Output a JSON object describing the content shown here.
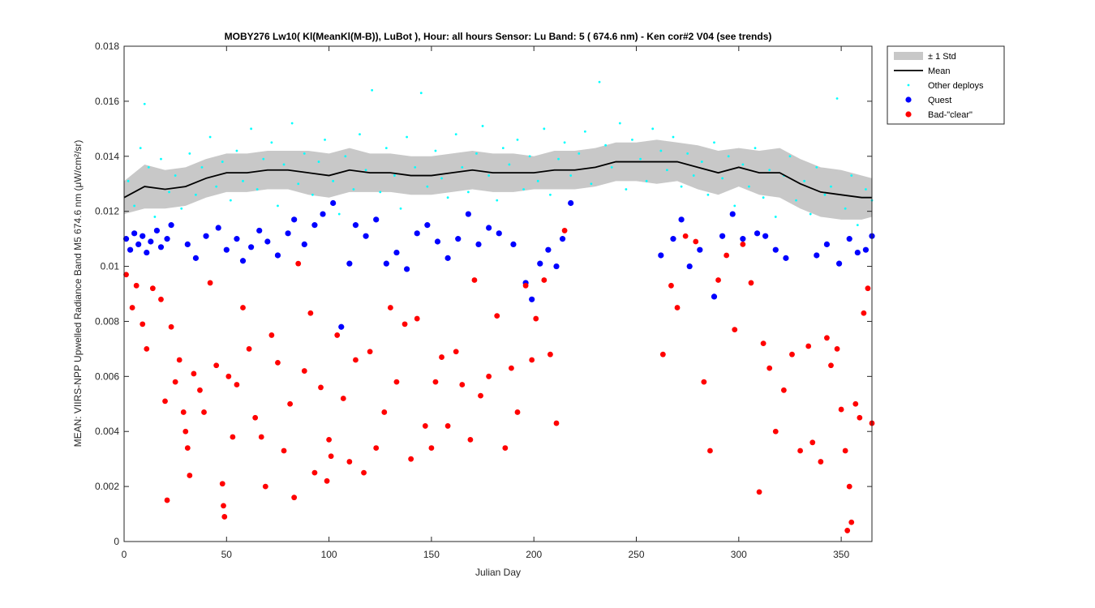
{
  "chart_data": {
    "type": "scatter",
    "title": "MOBY276   Lw10( Kl(MeanKl(M-B)), LuBot ),   Hour: all hours  Sensor: Lu Band: 5 ( 674.6 nm)  - Ken cor#2 V04 (see trends)",
    "xlabel": "Julian Day",
    "ylabel": "MEAN: VIIRS-NPP Upwelled Radiance Band M5 674.6 nm (μW/cm²/sr)",
    "xlim": [
      0,
      365
    ],
    "ylim": [
      0,
      0.018
    ],
    "xticks": [
      0,
      50,
      100,
      150,
      200,
      250,
      300,
      350
    ],
    "yticks": [
      0,
      0.002,
      0.004,
      0.006,
      0.008,
      0.01,
      0.012,
      0.014,
      0.016,
      0.018
    ],
    "legend": "outside-top-right",
    "series": [
      {
        "name": "± 1 Std",
        "color": "#c8c8c8",
        "x": [
          0,
          10,
          20,
          30,
          40,
          50,
          60,
          70,
          80,
          90,
          100,
          110,
          120,
          130,
          140,
          150,
          160,
          170,
          180,
          190,
          200,
          210,
          220,
          230,
          240,
          250,
          260,
          270,
          280,
          290,
          300,
          310,
          320,
          330,
          340,
          350,
          360,
          365
        ],
        "values": [
          0.0006,
          0.0008,
          0.0007,
          0.0007,
          0.0007,
          0.0007,
          0.0007,
          0.0007,
          0.0007,
          0.0008,
          0.0008,
          0.0008,
          0.0007,
          0.0007,
          0.0007,
          0.0007,
          0.0007,
          0.0007,
          0.0007,
          0.0007,
          0.0006,
          0.0007,
          0.0007,
          0.0007,
          0.0007,
          0.0007,
          0.0008,
          0.0007,
          0.0008,
          0.0008,
          0.0007,
          0.0008,
          0.0009,
          0.0009,
          0.0009,
          0.0009,
          0.0008,
          0.0007
        ]
      },
      {
        "name": "Mean",
        "color": "#000000",
        "x": [
          0,
          10,
          20,
          30,
          40,
          50,
          60,
          70,
          80,
          90,
          100,
          110,
          120,
          130,
          140,
          150,
          160,
          170,
          180,
          190,
          200,
          210,
          220,
          230,
          240,
          250,
          260,
          270,
          280,
          290,
          300,
          310,
          320,
          330,
          340,
          350,
          360,
          365
        ],
        "values": [
          0.0125,
          0.0129,
          0.0128,
          0.0129,
          0.0132,
          0.0134,
          0.0134,
          0.0135,
          0.0135,
          0.0134,
          0.0133,
          0.0135,
          0.0134,
          0.0134,
          0.0133,
          0.0133,
          0.0134,
          0.0135,
          0.0134,
          0.0134,
          0.0134,
          0.0135,
          0.0135,
          0.0136,
          0.0138,
          0.0138,
          0.0138,
          0.0138,
          0.0136,
          0.0134,
          0.0136,
          0.0134,
          0.0134,
          0.013,
          0.0127,
          0.0126,
          0.0125,
          0.0125
        ]
      },
      {
        "name": "Other deploys",
        "color": "#00ffff",
        "x": [
          2,
          5,
          8,
          10,
          12,
          15,
          18,
          22,
          25,
          28,
          32,
          35,
          38,
          42,
          45,
          48,
          52,
          55,
          58,
          62,
          65,
          68,
          72,
          75,
          78,
          82,
          85,
          88,
          92,
          95,
          98,
          102,
          105,
          108,
          112,
          115,
          118,
          121,
          125,
          128,
          132,
          135,
          138,
          142,
          145,
          148,
          152,
          155,
          158,
          162,
          165,
          168,
          172,
          175,
          178,
          182,
          185,
          188,
          192,
          195,
          198,
          202,
          205,
          208,
          212,
          215,
          218,
          222,
          225,
          228,
          232,
          235,
          238,
          242,
          245,
          248,
          252,
          255,
          258,
          262,
          265,
          268,
          272,
          275,
          278,
          282,
          285,
          288,
          292,
          295,
          298,
          302,
          305,
          308,
          312,
          315,
          318,
          322,
          325,
          328,
          332,
          335,
          338,
          342,
          345,
          348,
          352,
          355,
          358,
          362,
          365
        ],
        "values": [
          0.0131,
          0.0122,
          0.0143,
          0.0159,
          0.0136,
          0.0118,
          0.0139,
          0.0127,
          0.0133,
          0.0121,
          0.0141,
          0.0126,
          0.0136,
          0.0147,
          0.0129,
          0.0138,
          0.0124,
          0.0142,
          0.0131,
          0.015,
          0.0128,
          0.0139,
          0.0145,
          0.0122,
          0.0137,
          0.0152,
          0.013,
          0.0141,
          0.0126,
          0.0138,
          0.0146,
          0.0131,
          0.0119,
          0.014,
          0.0128,
          0.0148,
          0.0135,
          0.0164,
          0.0127,
          0.0143,
          0.0133,
          0.0121,
          0.0147,
          0.0136,
          0.0163,
          0.0129,
          0.0142,
          0.0132,
          0.0125,
          0.0148,
          0.0136,
          0.0127,
          0.0141,
          0.0151,
          0.0133,
          0.0124,
          0.0143,
          0.0137,
          0.0146,
          0.0128,
          0.014,
          0.0131,
          0.015,
          0.0126,
          0.0139,
          0.0145,
          0.0133,
          0.0141,
          0.0149,
          0.013,
          0.0167,
          0.0144,
          0.0136,
          0.0152,
          0.0128,
          0.0146,
          0.0139,
          0.0131,
          0.015,
          0.0142,
          0.0135,
          0.0147,
          0.0129,
          0.0141,
          0.0133,
          0.0138,
          0.0126,
          0.0145,
          0.0132,
          0.014,
          0.0122,
          0.0137,
          0.0129,
          0.0143,
          0.0125,
          0.0135,
          0.0118,
          0.0133,
          0.014,
          0.0124,
          0.0131,
          0.0119,
          0.0136,
          0.0126,
          0.0129,
          0.0161,
          0.0121,
          0.0133,
          0.0115,
          0.0128,
          0.0124
        ]
      },
      {
        "name": "Quest",
        "color": "#0000ff",
        "x": [
          1,
          3,
          5,
          7,
          9,
          11,
          13,
          16,
          18,
          21,
          23,
          31,
          35,
          40,
          46,
          50,
          55,
          58,
          62,
          66,
          70,
          75,
          80,
          83,
          88,
          93,
          97,
          102,
          106,
          110,
          113,
          118,
          123,
          128,
          133,
          138,
          143,
          148,
          153,
          158,
          163,
          168,
          173,
          178,
          183,
          190,
          196,
          199,
          203,
          207,
          211,
          214,
          218,
          262,
          268,
          272,
          276,
          281,
          288,
          292,
          297,
          302,
          309,
          313,
          318,
          323,
          338,
          343,
          349,
          354,
          358,
          362,
          365
        ],
        "values": [
          0.011,
          0.0106,
          0.0112,
          0.0108,
          0.0111,
          0.0105,
          0.0109,
          0.0113,
          0.0107,
          0.011,
          0.0115,
          0.0108,
          0.0103,
          0.0111,
          0.0114,
          0.0106,
          0.011,
          0.0102,
          0.0107,
          0.0113,
          0.0109,
          0.0104,
          0.0112,
          0.0117,
          0.0108,
          0.0115,
          0.0119,
          0.0123,
          0.0078,
          0.0101,
          0.0115,
          0.0111,
          0.0117,
          0.0101,
          0.0105,
          0.0099,
          0.0112,
          0.0115,
          0.0109,
          0.0103,
          0.011,
          0.0119,
          0.0108,
          0.0114,
          0.0112,
          0.0108,
          0.0094,
          0.0088,
          0.0101,
          0.0106,
          0.01,
          0.011,
          0.0123,
          0.0104,
          0.011,
          0.0117,
          0.01,
          0.0106,
          0.0089,
          0.0111,
          0.0119,
          0.011,
          0.0112,
          0.0111,
          0.0106,
          0.0103,
          0.0104,
          0.0108,
          0.0101,
          0.011,
          0.0105,
          0.0106,
          0.0111
        ]
      },
      {
        "name": "Bad-\"clear\"",
        "color": "#ff0000",
        "x": [
          1,
          4,
          6,
          9,
          11,
          14,
          18,
          20,
          21,
          23,
          25,
          27,
          29,
          30,
          31,
          32,
          34,
          37,
          39,
          42,
          45,
          48,
          48.5,
          49,
          51,
          53,
          55,
          58,
          61,
          64,
          67,
          69,
          72,
          75,
          78,
          81,
          83,
          85,
          88,
          91,
          93,
          96,
          99,
          100,
          101,
          104,
          107,
          110,
          113,
          117,
          120,
          123,
          127,
          130,
          133,
          137,
          140,
          143,
          147,
          150,
          152,
          155,
          158,
          162,
          165,
          169,
          171,
          174,
          178,
          182,
          186,
          189,
          192,
          196,
          199,
          201,
          205,
          208,
          211,
          215,
          263,
          267,
          270,
          274,
          279,
          283,
          286,
          290,
          294,
          298,
          302,
          306,
          310,
          312,
          315,
          318,
          322,
          326,
          330,
          334,
          336,
          340,
          343,
          345,
          348,
          350,
          352,
          353,
          354,
          355,
          357,
          359,
          361,
          363,
          365
        ],
        "values": [
          0.0097,
          0.0085,
          0.0093,
          0.0079,
          0.007,
          0.0092,
          0.0088,
          0.0051,
          0.0015,
          0.0078,
          0.0058,
          0.0066,
          0.0047,
          0.004,
          0.0034,
          0.0024,
          0.0061,
          0.0055,
          0.0047,
          0.0094,
          0.0064,
          0.0021,
          0.0013,
          0.0009,
          0.006,
          0.0038,
          0.0057,
          0.0085,
          0.007,
          0.0045,
          0.0038,
          0.002,
          0.0075,
          0.0065,
          0.0033,
          0.005,
          0.0016,
          0.0101,
          0.0062,
          0.0083,
          0.0025,
          0.0056,
          0.0022,
          0.0037,
          0.0031,
          0.0075,
          0.0052,
          0.0029,
          0.0066,
          0.0025,
          0.0069,
          0.0034,
          0.0047,
          0.0085,
          0.0058,
          0.0079,
          0.003,
          0.0081,
          0.0042,
          0.0034,
          0.0058,
          0.0067,
          0.0042,
          0.0069,
          0.0057,
          0.0037,
          0.0095,
          0.0053,
          0.006,
          0.0082,
          0.0034,
          0.0063,
          0.0047,
          0.0093,
          0.0066,
          0.0081,
          0.0095,
          0.0068,
          0.0043,
          0.0113,
          0.0068,
          0.0093,
          0.0085,
          0.0111,
          0.0109,
          0.0058,
          0.0033,
          0.0095,
          0.0104,
          0.0077,
          0.0108,
          0.0094,
          0.0018,
          0.0072,
          0.0063,
          0.004,
          0.0055,
          0.0068,
          0.0033,
          0.0071,
          0.0036,
          0.0029,
          0.0074,
          0.0064,
          0.007,
          0.0048,
          0.0033,
          0.0004,
          0.002,
          0.0007,
          0.005,
          0.0045,
          0.0083,
          0.0092,
          0.0043
        ]
      }
    ]
  }
}
